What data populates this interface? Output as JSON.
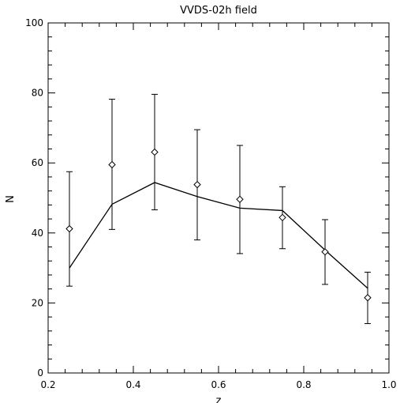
{
  "chart_data": {
    "type": "scatter",
    "title": "VVDS-02h field",
    "xlabel": "z",
    "ylabel": "N",
    "xlim": [
      0.2,
      1.0
    ],
    "ylim": [
      0,
      100
    ],
    "xticks": [
      0.2,
      0.4,
      0.6,
      0.8,
      1.0
    ],
    "xtick_labels": [
      "0.2",
      "0.4",
      "0.6",
      "0.8",
      "1.0"
    ],
    "yticks": [
      0,
      20,
      40,
      60,
      80,
      100
    ],
    "ytick_labels": [
      "0",
      "20",
      "40",
      "60",
      "80",
      "100"
    ],
    "grid": false,
    "points": {
      "marker": "diamond",
      "x": [
        0.25,
        0.35,
        0.45,
        0.55,
        0.65,
        0.75,
        0.85,
        0.95
      ],
      "y": [
        41.2,
        59.5,
        63.1,
        53.8,
        49.6,
        44.4,
        34.6,
        21.5
      ],
      "err_low": [
        24.8,
        41.0,
        46.6,
        38.0,
        34.1,
        35.5,
        25.3,
        14.1
      ],
      "err_high": [
        57.5,
        78.2,
        79.6,
        69.5,
        65.0,
        53.2,
        43.8,
        28.8
      ]
    },
    "line": {
      "x": [
        0.25,
        0.35,
        0.45,
        0.55,
        0.65,
        0.75,
        0.85,
        0.95
      ],
      "y": [
        30.0,
        48.2,
        54.4,
        50.4,
        47.1,
        46.4,
        35.1,
        24.2
      ]
    },
    "colors": {
      "axes": "#000000",
      "marks": "#000000",
      "background": "#ffffff"
    }
  }
}
